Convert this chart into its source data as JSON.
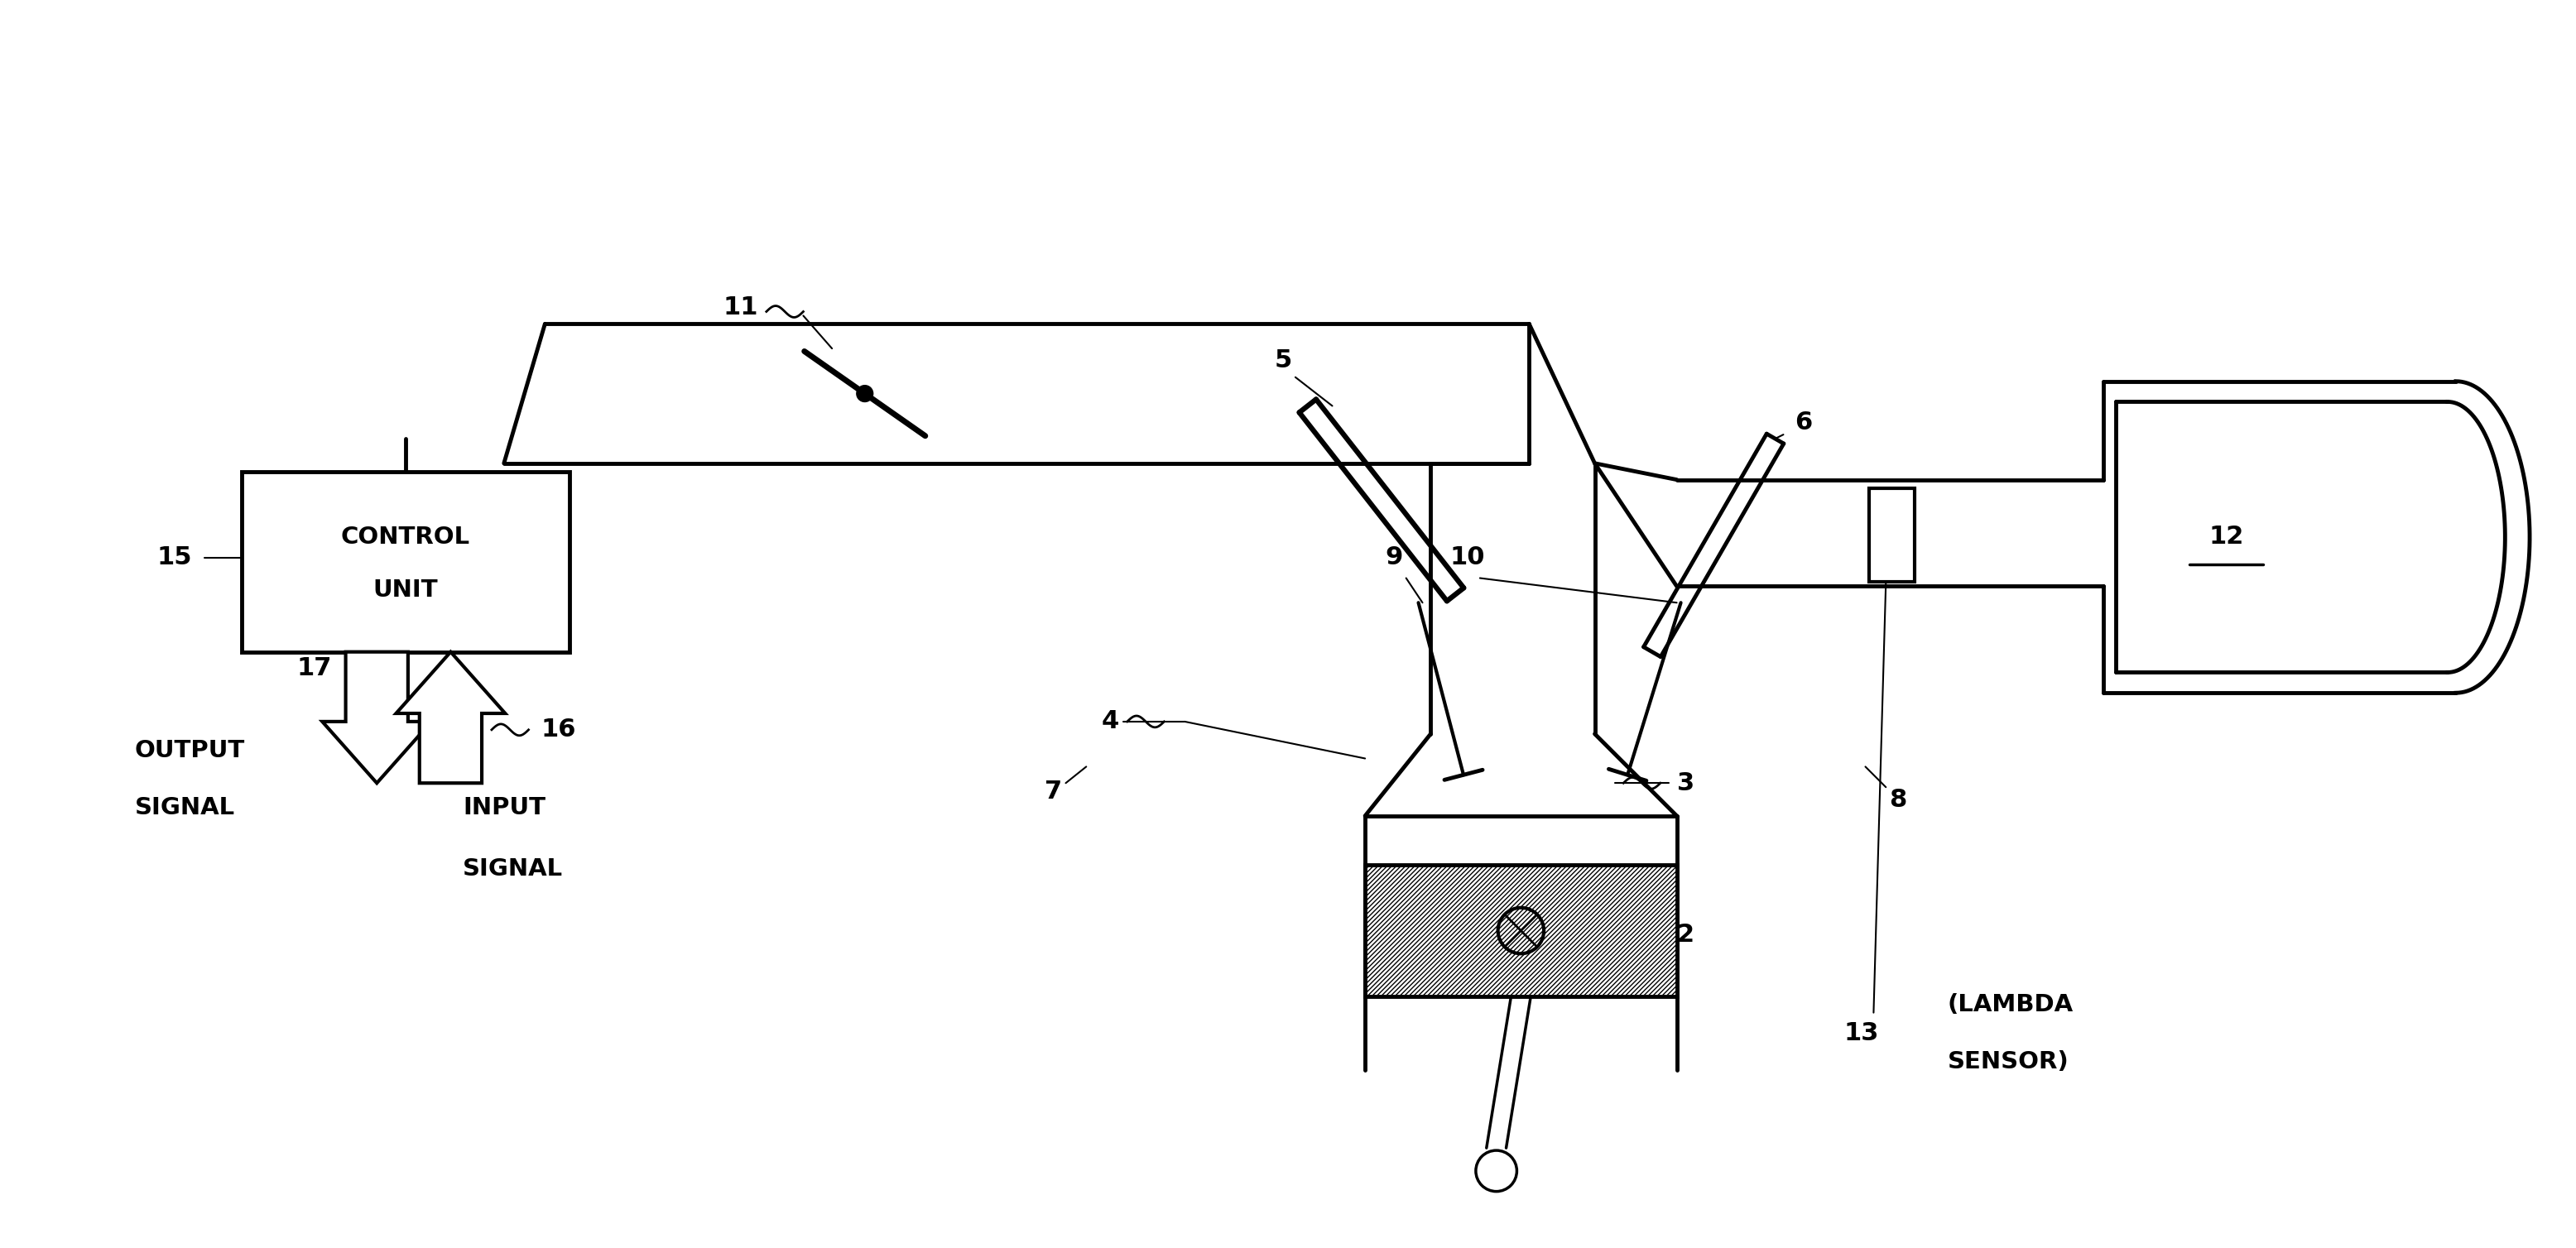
{
  "bg_color": "#ffffff",
  "line_color": "#000000",
  "lw": 3.5,
  "fig_width": 31.12,
  "fig_height": 15.08,
  "control_unit_text": [
    "CONTROL",
    "UNIT"
  ],
  "output_signal_text": [
    "17",
    "OUTPUT",
    "SIGNAL"
  ],
  "input_signal_text": [
    "16",
    "INPUT",
    "SIGNAL"
  ],
  "lambda_text": [
    "13",
    "(LAMBDA",
    "SENSOR)"
  ],
  "label_12_text": "12",
  "font_size_num": 22,
  "font_size_text": 21
}
